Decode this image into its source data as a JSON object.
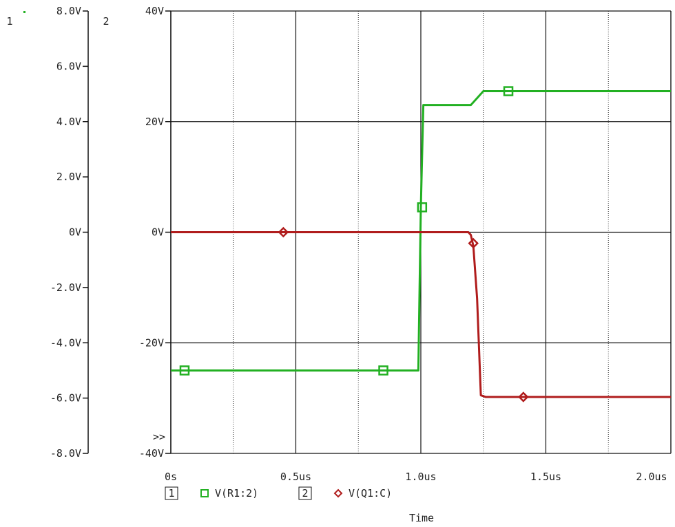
{
  "chart_data": {
    "type": "line",
    "xlabel": "Time",
    "x_ticks": [
      "0s",
      "0.5us",
      "1.0us",
      "1.5us",
      "2.0us"
    ],
    "xlim": [
      0,
      2.0
    ],
    "axis1": {
      "number": "1",
      "ylim": [
        -8,
        8
      ],
      "ticks": [
        "8.0V",
        "6.0V",
        "4.0V",
        "2.0V",
        "0V",
        "-2.0V",
        "-4.0V",
        "-6.0V",
        "-8.0V"
      ]
    },
    "axis2": {
      "number": "2",
      "ylim": [
        -40,
        40
      ],
      "ticks": [
        "40V",
        "20V",
        "0V",
        "-20V",
        "-40V"
      ]
    },
    "grid": true,
    "overflow_marker": ">>",
    "series": [
      {
        "name": "V(R1:2)",
        "axis": 1,
        "color": "#22b022",
        "marker": "square",
        "x": [
          0,
          0.99,
          0.995,
          1.0,
          1.01,
          1.2,
          1.22,
          1.25,
          1.3,
          2.0
        ],
        "y": [
          -5.0,
          -5.0,
          -2.0,
          0.9,
          4.6,
          4.6,
          4.8,
          5.1,
          5.1,
          5.1
        ],
        "marker_x": [
          0.055,
          0.85,
          1.005,
          1.35
        ],
        "marker_y": [
          -5.0,
          -5.0,
          0.9,
          5.1
        ]
      },
      {
        "name": "V(Q1:C)",
        "axis": 2,
        "color": "#b01c1c",
        "marker": "diamond",
        "x": [
          0,
          1.19,
          1.2,
          1.21,
          1.225,
          1.24,
          1.26,
          2.0
        ],
        "y": [
          0,
          0,
          -0.5,
          -2.5,
          -12,
          -29.5,
          -29.8,
          -29.8
        ],
        "marker_x": [
          0.45,
          1.21,
          1.41
        ],
        "marker_y": [
          0,
          -2.0,
          -29.8
        ]
      }
    ],
    "legend": {
      "placement": "bottom",
      "entries": [
        {
          "axis_label": "1",
          "name": "V(R1:2)"
        },
        {
          "axis_label": "2",
          "name": "V(Q1:C)"
        }
      ]
    }
  }
}
